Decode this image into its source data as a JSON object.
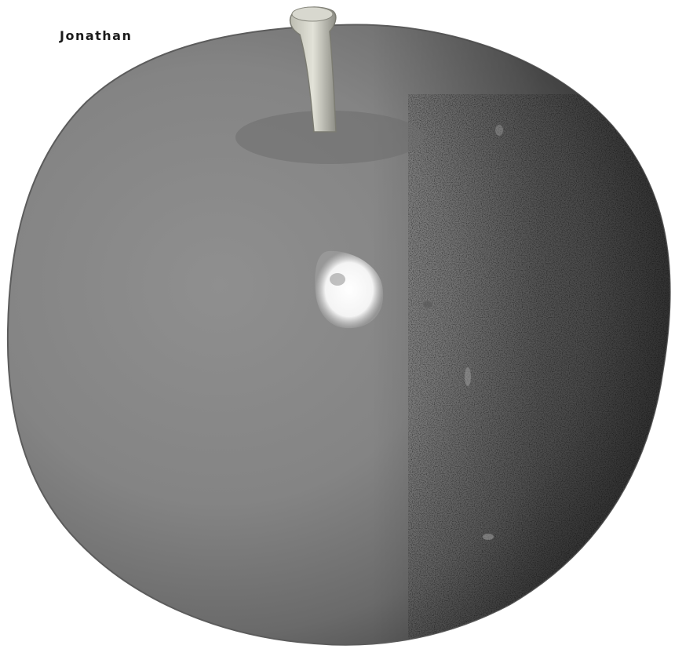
{
  "caption": "Jonathan",
  "subject": "apple-icon",
  "colors": {
    "background": "#ffffff",
    "fruit_light": "#8e8e8e",
    "fruit_mid": "#7a7a7a",
    "fruit_dark": "#3a3a3a",
    "stem": "#cfcfc4",
    "highlight": "#ffffff"
  }
}
